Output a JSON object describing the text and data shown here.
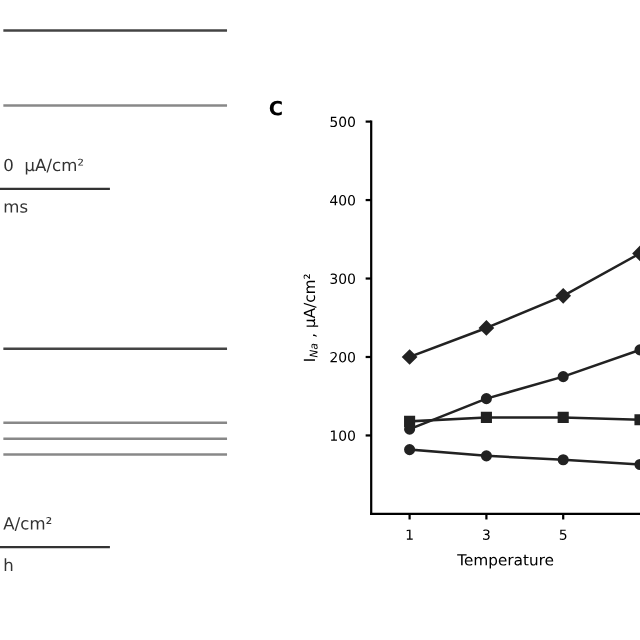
{
  "chart_data": [
    {
      "type": "other",
      "annotations": [
        "0  μA/cm²",
        "ms"
      ]
    },
    {
      "type": "other",
      "annotations": [
        "A/cm²",
        "h"
      ]
    },
    {
      "type": "line",
      "title": "C",
      "xlabel": "Temperature",
      "ylabel": "I$_{Na}$ , μA/cm²",
      "x": [
        1,
        3,
        5,
        7
      ],
      "xlim": [
        0,
        7
      ],
      "xticks": [
        1,
        3,
        5
      ],
      "ylim": [
        0,
        500
      ],
      "yticks": [
        100,
        200,
        300,
        400,
        500
      ],
      "grid": false,
      "line_style": "solid",
      "series": [
        {
          "color": "#222222",
          "marker": "diamond",
          "values": [
            200,
            237,
            278,
            332
          ]
        },
        {
          "color": "#222222",
          "marker": "circle",
          "values": [
            108,
            147,
            175,
            209
          ]
        },
        {
          "color": "#222222",
          "marker": "square",
          "values": [
            118,
            123,
            123,
            120
          ]
        },
        {
          "color": "#222222",
          "marker": "circle",
          "values": [
            82,
            74,
            69,
            63
          ]
        }
      ]
    }
  ]
}
